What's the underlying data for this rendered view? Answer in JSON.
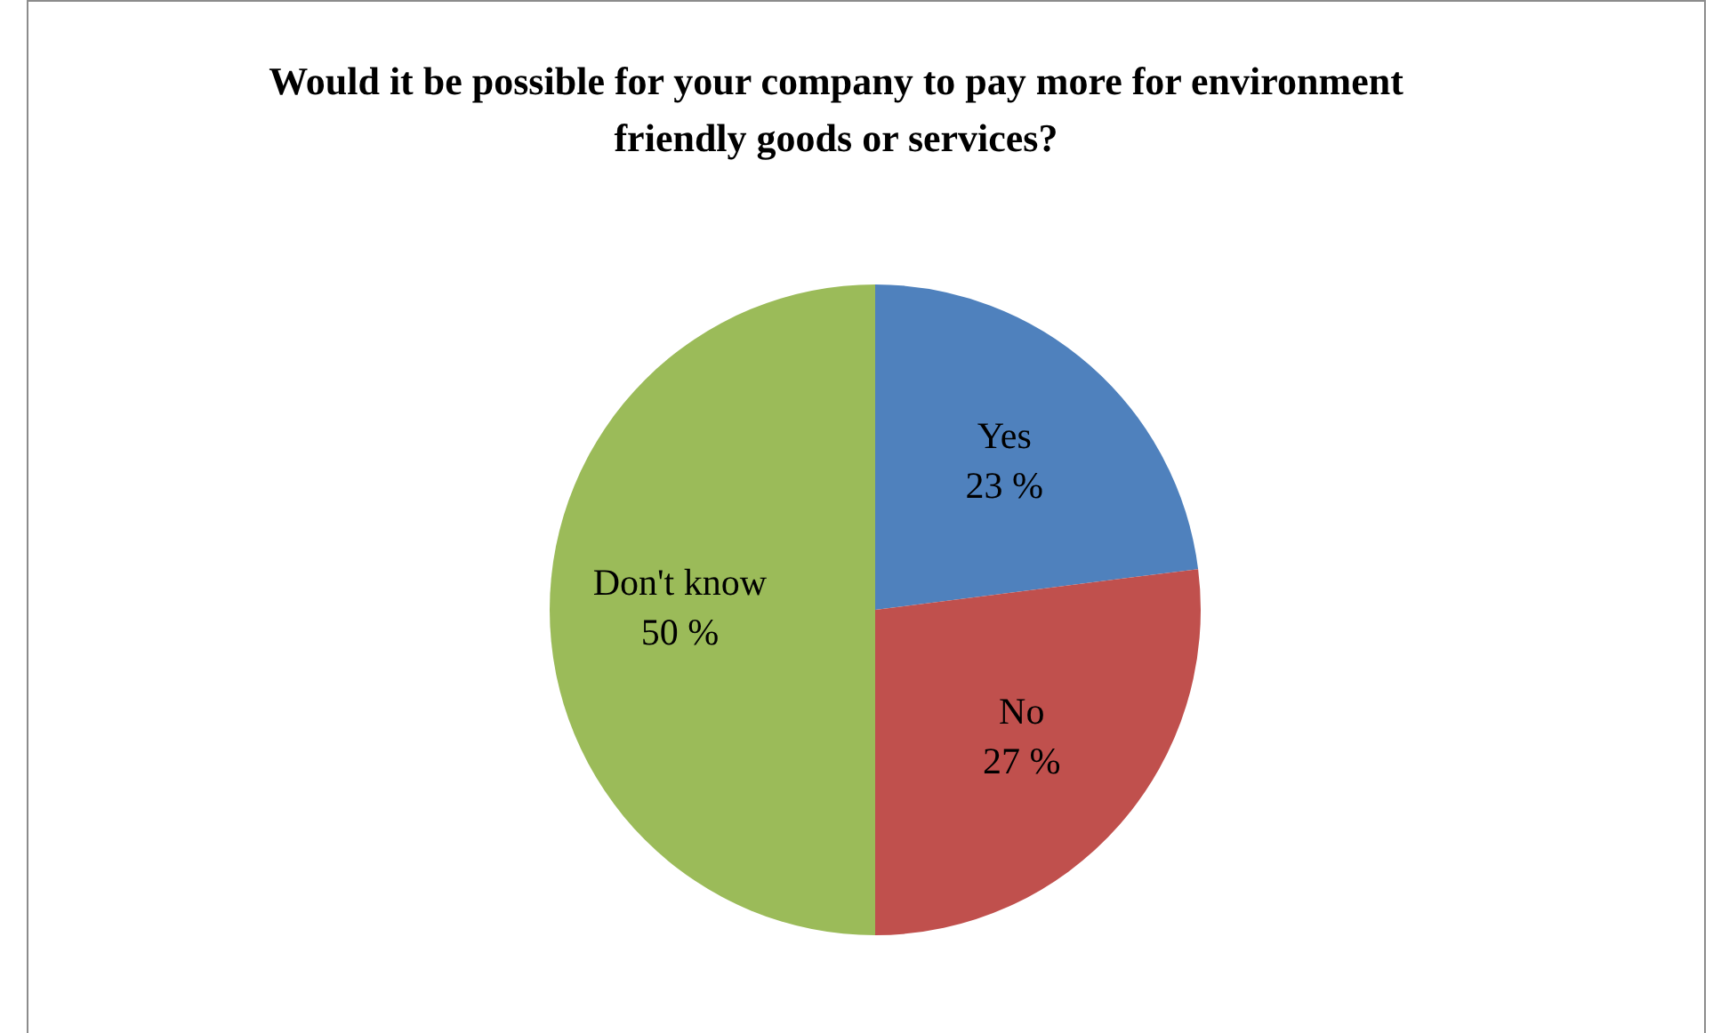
{
  "chart_data": {
    "type": "pie",
    "title": "Would it be possible for your company to pay more for environment friendly goods or services?",
    "categories": [
      "Yes",
      "No",
      "Don't know"
    ],
    "values": [
      23,
      27,
      50
    ],
    "value_labels": [
      "23 %",
      "27 %",
      "50 %"
    ],
    "colors": [
      "#4f81bd",
      "#c0504d",
      "#9bbb59"
    ],
    "legend": false
  }
}
